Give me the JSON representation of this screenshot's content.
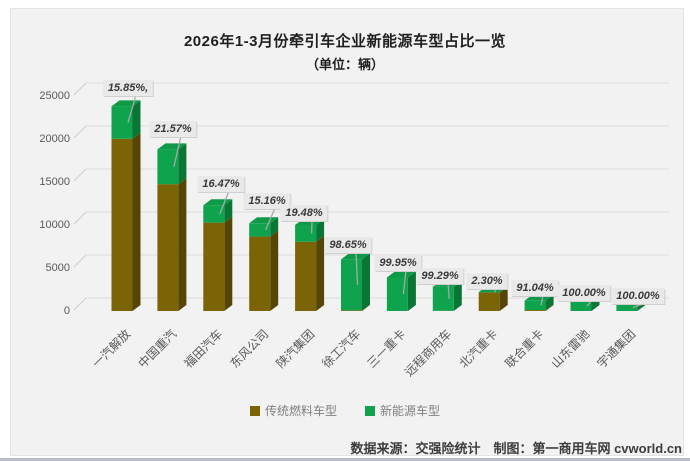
{
  "title": {
    "line1": "2026年1-3月份牵引车企业新能源车型占比一览",
    "line2": "（单位：辆）"
  },
  "legend": {
    "fuel": "传统燃料车型",
    "nev": "新能源车型"
  },
  "footer": {
    "text": "数据来源：交强险统计　制图：第一商用车网 cvworld.cn"
  },
  "colors": {
    "background": "#f2f2f2",
    "gridline": "#dcdcdc",
    "leader_line": "#a8a8a8",
    "fuel_front": "#7a6405",
    "fuel_side": "#564605",
    "fuel_top": "#6b5804",
    "nev_front": "#0fa34d",
    "nev_side": "#0a7636",
    "nev_top": "#0e9a47",
    "label_box": "#e9e9e9",
    "axis_text": "#595959"
  },
  "chart_data": {
    "type": "bar",
    "subtype": "3d-stacked",
    "title": "2026年1-3月份牵引车企业新能源车型占比一览",
    "unit_note": "（单位：辆）",
    "categories": [
      "一汽解放",
      "中国重汽",
      "福田汽车",
      "东风公司",
      "陕汽集团",
      "徐工汽车",
      "三一重卡",
      "远程商用车",
      "北汽重卡",
      "联合重卡",
      "山东雷驰",
      "宇通集团"
    ],
    "percent_labels": [
      "15.85%,",
      "21.57%",
      "16.47%",
      "15.16%",
      "19.48%",
      "98.65%",
      "99.95%",
      "99.29%",
      "2.30%",
      "91.04%",
      "100.00%",
      "100.00%"
    ],
    "nev_share_percent": [
      15.85,
      21.57,
      16.47,
      15.16,
      19.48,
      98.65,
      99.95,
      99.29,
      2.3,
      91.04,
      100.0,
      100.0
    ],
    "totals_estimated": [
      23800,
      18800,
      12300,
      10200,
      10000,
      6000,
      3900,
      2800,
      2200,
      1200,
      1100,
      800
    ],
    "series": [
      {
        "name": "传统燃料车型",
        "values": [
          20028,
          14745,
          10274,
          8654,
          8052,
          81,
          2,
          20,
          2149,
          108,
          0,
          0
        ]
      },
      {
        "name": "新能源车型",
        "values": [
          3772,
          4055,
          2026,
          1546,
          1948,
          5919,
          3898,
          2780,
          51,
          1092,
          1100,
          800
        ]
      }
    ],
    "yticks": [
      0,
      5000,
      10000,
      15000,
      20000,
      25000
    ],
    "ylim": [
      0,
      25000
    ],
    "grid": true,
    "legend_position": "bottom"
  }
}
